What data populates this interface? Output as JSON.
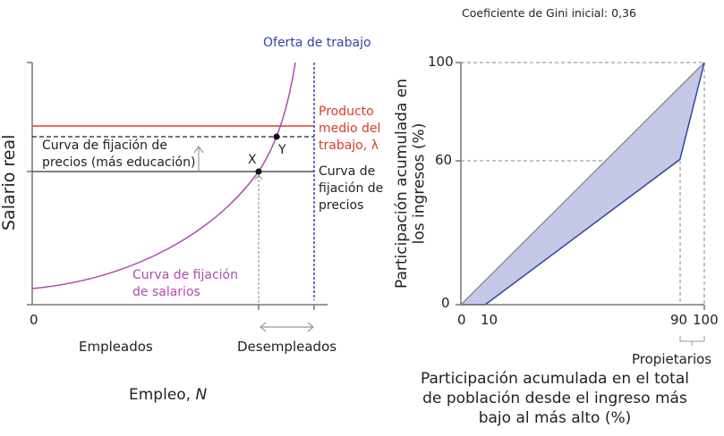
{
  "left": {
    "labor_supply_label": "Oferta de trabajo",
    "avg_product_label": [
      "Producto",
      "medio del",
      "trabajo, λ"
    ],
    "price_curve_label": [
      "Curva de",
      "fijación de",
      "precios"
    ],
    "price_curve_education_label": [
      "Curva de fijación de",
      "precios (más educación)"
    ],
    "wage_curve_label": [
      "Curva de fijación",
      "de salarios"
    ],
    "point_x": "X",
    "point_y": "Y",
    "y_axis_label": "Salario real",
    "origin": "0",
    "employed": "Empleados",
    "unemployed": "Desempleados",
    "x_axis_label": "Empleo, ",
    "x_axis_var": "N",
    "colors": {
      "labor_supply": "#3344aa",
      "avg_product": "#e03a2a",
      "wage_curve": "#b04ab0"
    }
  },
  "right": {
    "title": "Coeficiente de Gini inicial: 0,36",
    "y_axis_label": [
      "Participación acumulada en",
      "los ingresos (%)"
    ],
    "x_axis_label": [
      "Participación acumulada en el total",
      "de población desde el ingreso más",
      "bajo al más alto (%)"
    ],
    "owners_label": "Propietarios",
    "y_ticks": [
      "0",
      "60",
      "100"
    ],
    "x_ticks": [
      "0",
      "10",
      "90",
      "100"
    ],
    "lorenz_points": [
      [
        0,
        0
      ],
      [
        10,
        0
      ],
      [
        90,
        60
      ],
      [
        100,
        100
      ]
    ],
    "colors": {
      "lorenz": "#3344aa",
      "fill": "#c5c9e6"
    }
  }
}
